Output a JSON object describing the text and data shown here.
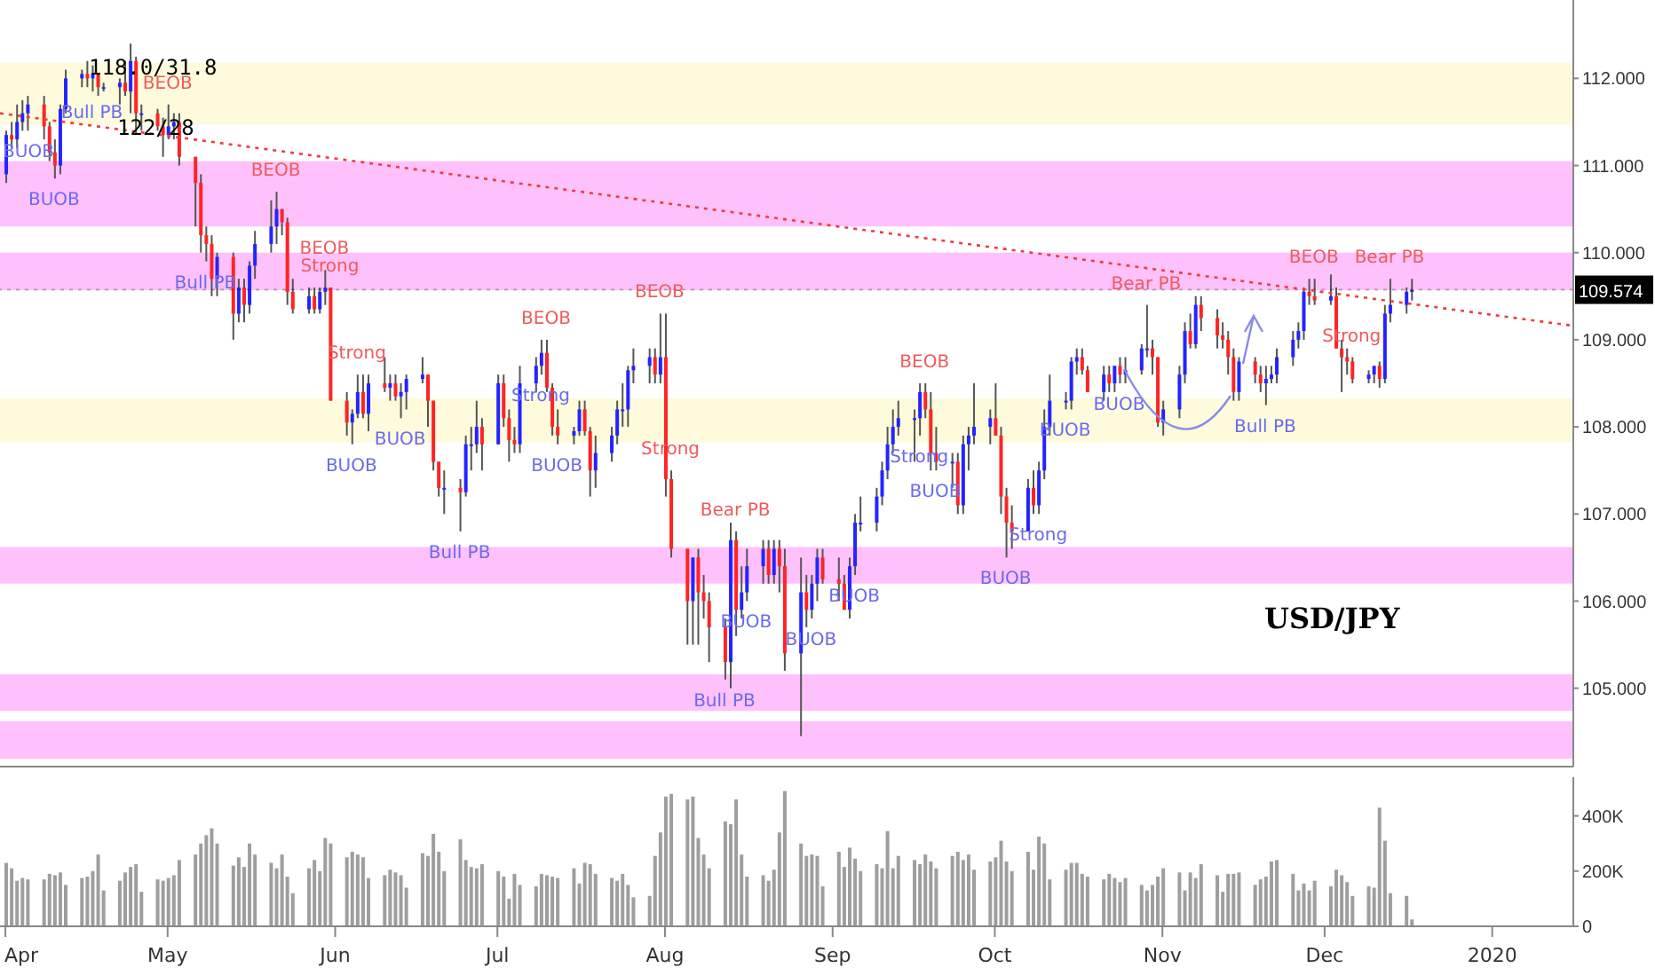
{
  "chart_data": [
    {
      "type": "candlestick",
      "tick_labels": "y",
      "x": [
        "2019-04-01",
        "2019-04-02",
        "2019-04-03",
        "2019-04-04",
        "2019-04-05",
        "2019-04-08",
        "2019-04-09",
        "2019-04-10",
        "2019-04-11",
        "2019-04-12",
        "2019-04-15",
        "2019-04-16",
        "2019-04-17",
        "2019-04-18",
        "2019-04-19",
        "2019-04-22",
        "2019-04-23",
        "2019-04-24",
        "2019-04-25",
        "2019-04-26",
        "2019-04-29",
        "2019-04-30",
        "2019-05-01",
        "2019-05-02",
        "2019-05-03",
        "2019-05-06",
        "2019-05-07",
        "2019-05-08",
        "2019-05-09",
        "2019-05-10",
        "2019-05-13",
        "2019-05-14",
        "2019-05-15",
        "2019-05-16",
        "2019-05-17",
        "2019-05-20",
        "2019-05-21",
        "2019-05-22",
        "2019-05-23",
        "2019-05-24",
        "2019-05-27",
        "2019-05-28",
        "2019-05-29",
        "2019-05-30",
        "2019-05-31",
        "2019-06-03",
        "2019-06-04",
        "2019-06-05",
        "2019-06-06",
        "2019-06-07",
        "2019-06-10",
        "2019-06-11",
        "2019-06-12",
        "2019-06-13",
        "2019-06-14",
        "2019-06-17",
        "2019-06-18",
        "2019-06-19",
        "2019-06-20",
        "2019-06-21",
        "2019-06-24",
        "2019-06-25",
        "2019-06-26",
        "2019-06-27",
        "2019-06-28",
        "2019-07-01",
        "2019-07-02",
        "2019-07-03",
        "2019-07-04",
        "2019-07-05",
        "2019-07-08",
        "2019-07-09",
        "2019-07-10",
        "2019-07-11",
        "2019-07-12",
        "2019-07-15",
        "2019-07-16",
        "2019-07-17",
        "2019-07-18",
        "2019-07-19",
        "2019-07-22",
        "2019-07-23",
        "2019-07-24",
        "2019-07-25",
        "2019-07-26",
        "2019-07-29",
        "2019-07-30",
        "2019-07-31",
        "2019-08-01",
        "2019-08-02",
        "2019-08-05",
        "2019-08-06",
        "2019-08-07",
        "2019-08-08",
        "2019-08-09",
        "2019-08-12",
        "2019-08-13",
        "2019-08-14",
        "2019-08-15",
        "2019-08-16",
        "2019-08-19",
        "2019-08-20",
        "2019-08-21",
        "2019-08-22",
        "2019-08-23",
        "2019-08-26",
        "2019-08-27",
        "2019-08-28",
        "2019-08-29",
        "2019-08-30",
        "2019-09-02",
        "2019-09-03",
        "2019-09-04",
        "2019-09-05",
        "2019-09-06",
        "2019-09-09",
        "2019-09-10",
        "2019-09-11",
        "2019-09-12",
        "2019-09-13",
        "2019-09-16",
        "2019-09-17",
        "2019-09-18",
        "2019-09-19",
        "2019-09-20",
        "2019-09-23",
        "2019-09-24",
        "2019-09-25",
        "2019-09-26",
        "2019-09-27",
        "2019-09-30",
        "2019-10-01",
        "2019-10-02",
        "2019-10-03",
        "2019-10-04",
        "2019-10-07",
        "2019-10-08",
        "2019-10-09",
        "2019-10-10",
        "2019-10-11",
        "2019-10-14",
        "2019-10-15",
        "2019-10-16",
        "2019-10-17",
        "2019-10-18",
        "2019-10-21",
        "2019-10-22",
        "2019-10-23",
        "2019-10-24",
        "2019-10-25",
        "2019-10-28",
        "2019-10-29",
        "2019-10-30",
        "2019-10-31",
        "2019-11-01",
        "2019-11-04",
        "2019-11-05",
        "2019-11-06",
        "2019-11-07",
        "2019-11-08",
        "2019-11-11",
        "2019-11-12",
        "2019-11-13",
        "2019-11-14",
        "2019-11-15",
        "2019-11-18",
        "2019-11-19",
        "2019-11-20",
        "2019-11-21",
        "2019-11-22",
        "2019-11-25",
        "2019-11-26",
        "2019-11-27",
        "2019-11-28",
        "2019-11-29",
        "2019-12-02",
        "2019-12-03",
        "2019-12-04",
        "2019-12-05",
        "2019-12-06",
        "2019-12-09",
        "2019-12-10",
        "2019-12-11",
        "2019-12-12",
        "2019-12-13",
        "2019-12-16",
        "2019-12-17"
      ],
      "ohlc": [
        [
          110.9,
          111.4,
          110.8,
          111.35
        ],
        [
          111.35,
          111.5,
          111.2,
          111.3
        ],
        [
          111.3,
          111.7,
          111.2,
          111.5
        ],
        [
          111.5,
          111.75,
          111.4,
          111.6
        ],
        [
          111.6,
          111.8,
          111.4,
          111.7
        ],
        [
          111.7,
          111.8,
          111.3,
          111.45
        ],
        [
          111.45,
          111.5,
          111.05,
          111.15
        ],
        [
          111.15,
          111.3,
          110.85,
          111.0
        ],
        [
          111.0,
          111.7,
          110.9,
          111.65
        ],
        [
          111.65,
          112.1,
          111.6,
          112.0
        ],
        [
          112.0,
          112.1,
          111.9,
          112.05
        ],
        [
          112.05,
          112.2,
          111.9,
          112.0
        ],
        [
          112.0,
          112.15,
          111.85,
          112.05
        ],
        [
          112.05,
          112.05,
          111.8,
          111.9
        ],
        [
          111.9,
          111.95,
          111.85,
          111.9
        ],
        [
          111.9,
          112.0,
          111.7,
          111.95
        ],
        [
          111.95,
          112.2,
          111.8,
          111.85
        ],
        [
          111.85,
          112.4,
          111.6,
          112.2
        ],
        [
          112.2,
          112.25,
          111.35,
          111.6
        ],
        [
          111.6,
          111.7,
          111.4,
          111.6
        ],
        [
          111.6,
          111.65,
          111.4,
          111.45
        ],
        [
          111.45,
          111.55,
          111.1,
          111.35
        ],
        [
          111.35,
          111.7,
          111.3,
          111.45
        ],
        [
          111.45,
          111.6,
          111.3,
          111.5
        ],
        [
          111.5,
          111.6,
          111.0,
          111.1
        ],
        [
          111.1,
          111.1,
          110.3,
          110.8
        ],
        [
          110.8,
          110.9,
          110.0,
          110.2
        ],
        [
          110.2,
          110.3,
          109.9,
          110.1
        ],
        [
          110.1,
          110.2,
          109.5,
          109.7
        ],
        [
          109.7,
          110.0,
          109.5,
          109.95
        ],
        [
          109.95,
          110.0,
          109.0,
          109.3
        ],
        [
          109.3,
          109.7,
          109.2,
          109.6
        ],
        [
          109.6,
          109.7,
          109.2,
          109.4
        ],
        [
          109.4,
          109.9,
          109.3,
          109.85
        ],
        [
          109.85,
          110.25,
          109.7,
          110.1
        ],
        [
          110.1,
          110.6,
          110.0,
          110.3
        ],
        [
          110.3,
          110.7,
          110.1,
          110.5
        ],
        [
          110.5,
          110.5,
          110.2,
          110.35
        ],
        [
          110.35,
          110.4,
          109.4,
          109.55
        ],
        [
          109.55,
          109.7,
          109.3,
          109.35
        ],
        [
          109.35,
          109.6,
          109.3,
          109.5
        ],
        [
          109.5,
          109.6,
          109.3,
          109.35
        ],
        [
          109.35,
          109.6,
          109.3,
          109.55
        ],
        [
          109.55,
          109.8,
          109.4,
          109.6
        ],
        [
          109.6,
          109.6,
          108.3,
          108.3
        ],
        [
          108.3,
          108.4,
          107.9,
          108.05
        ],
        [
          108.05,
          108.2,
          107.8,
          108.15
        ],
        [
          108.15,
          108.6,
          108.1,
          108.4
        ],
        [
          108.4,
          108.6,
          108.1,
          108.15
        ],
        [
          108.15,
          108.6,
          107.95,
          108.5
        ],
        [
          108.5,
          108.8,
          108.4,
          108.45
        ],
        [
          108.45,
          108.6,
          108.3,
          108.5
        ],
        [
          108.5,
          108.6,
          108.3,
          108.35
        ],
        [
          108.35,
          108.5,
          108.1,
          108.4
        ],
        [
          108.4,
          108.6,
          108.2,
          108.55
        ],
        [
          108.55,
          108.8,
          108.5,
          108.6
        ],
        [
          108.6,
          108.6,
          108.0,
          108.3
        ],
        [
          108.3,
          108.3,
          107.5,
          107.6
        ],
        [
          107.6,
          107.6,
          107.2,
          107.3
        ],
        [
          107.3,
          107.5,
          107.0,
          107.3
        ],
        [
          107.3,
          107.4,
          106.8,
          107.25
        ],
        [
          107.25,
          107.9,
          107.2,
          107.8
        ],
        [
          107.8,
          108.0,
          107.5,
          107.8
        ],
        [
          107.8,
          108.3,
          107.7,
          108.0
        ],
        [
          108.0,
          108.1,
          107.5,
          107.8
        ],
        [
          107.8,
          108.6,
          107.8,
          108.5
        ],
        [
          108.5,
          108.6,
          108.0,
          108.1
        ],
        [
          108.1,
          108.2,
          107.6,
          107.85
        ],
        [
          107.85,
          108.0,
          107.7,
          107.8
        ],
        [
          107.8,
          108.7,
          107.7,
          108.5
        ],
        [
          108.5,
          108.8,
          108.4,
          108.7
        ],
        [
          108.7,
          109.0,
          108.6,
          108.85
        ],
        [
          108.85,
          109.0,
          108.4,
          108.45
        ],
        [
          108.45,
          108.5,
          107.9,
          108.0
        ],
        [
          108.0,
          108.2,
          107.8,
          107.9
        ],
        [
          107.9,
          108.0,
          107.8,
          107.95
        ],
        [
          107.95,
          108.3,
          107.9,
          108.2
        ],
        [
          108.2,
          108.3,
          107.9,
          107.95
        ],
        [
          107.95,
          108.0,
          107.2,
          107.5
        ],
        [
          107.5,
          107.9,
          107.3,
          107.7
        ],
        [
          107.7,
          108.0,
          107.6,
          107.9
        ],
        [
          107.9,
          108.3,
          107.8,
          108.2
        ],
        [
          108.2,
          108.5,
          108.0,
          108.2
        ],
        [
          108.2,
          108.7,
          108.0,
          108.65
        ],
        [
          108.65,
          108.9,
          108.5,
          108.7
        ],
        [
          108.7,
          108.9,
          108.5,
          108.8
        ],
        [
          108.8,
          108.9,
          108.5,
          108.6
        ],
        [
          108.6,
          109.3,
          108.5,
          108.8
        ],
        [
          108.8,
          109.3,
          107.2,
          107.4
        ],
        [
          107.4,
          107.5,
          106.5,
          106.6
        ],
        [
          106.6,
          106.6,
          105.5,
          106.0
        ],
        [
          106.0,
          106.5,
          105.5,
          106.5
        ],
        [
          106.5,
          106.6,
          105.5,
          106.1
        ],
        [
          106.1,
          106.3,
          105.8,
          106.0
        ],
        [
          106.0,
          106.1,
          105.3,
          105.7
        ],
        [
          105.7,
          105.8,
          105.1,
          105.3
        ],
        [
          105.3,
          106.9,
          105.0,
          106.7
        ],
        [
          106.7,
          106.8,
          105.6,
          105.9
        ],
        [
          105.9,
          106.4,
          105.8,
          106.1
        ],
        [
          106.1,
          106.6,
          106.0,
          106.4
        ],
        [
          106.4,
          106.7,
          106.2,
          106.6
        ],
        [
          106.6,
          106.7,
          106.2,
          106.3
        ],
        [
          106.3,
          106.7,
          106.2,
          106.6
        ],
        [
          106.6,
          106.7,
          106.1,
          106.4
        ],
        [
          106.4,
          106.6,
          105.2,
          105.4
        ],
        [
          105.4,
          106.5,
          104.45,
          106.1
        ],
        [
          106.1,
          106.3,
          105.7,
          105.9
        ],
        [
          105.9,
          106.3,
          105.8,
          106.2
        ],
        [
          106.2,
          106.6,
          106.0,
          106.5
        ],
        [
          106.5,
          106.6,
          106.2,
          106.25
        ],
        [
          106.25,
          106.5,
          106.0,
          106.2
        ],
        [
          106.2,
          106.3,
          105.9,
          105.9
        ],
        [
          105.9,
          106.5,
          105.8,
          106.4
        ],
        [
          106.4,
          107.0,
          106.3,
          106.9
        ],
        [
          106.9,
          107.2,
          106.8,
          106.9
        ],
        [
          106.9,
          107.3,
          106.8,
          107.2
        ],
        [
          107.2,
          107.6,
          107.1,
          107.5
        ],
        [
          107.5,
          108.0,
          107.4,
          107.8
        ],
        [
          107.8,
          108.2,
          107.7,
          108.0
        ],
        [
          108.0,
          108.3,
          107.9,
          108.1
        ],
        [
          108.1,
          108.2,
          107.6,
          108.1
        ],
        [
          108.1,
          108.5,
          107.9,
          108.4
        ],
        [
          108.4,
          108.5,
          108.1,
          108.2
        ],
        [
          108.2,
          108.4,
          107.5,
          107.7
        ],
        [
          107.7,
          108.0,
          107.5,
          107.6
        ],
        [
          107.6,
          107.7,
          107.3,
          107.6
        ],
        [
          107.6,
          107.7,
          107.0,
          107.1
        ],
        [
          107.1,
          107.9,
          107.0,
          107.8
        ],
        [
          107.8,
          108.0,
          107.5,
          107.9
        ],
        [
          107.9,
          108.5,
          107.8,
          108.0
        ],
        [
          108.0,
          108.2,
          107.8,
          108.1
        ],
        [
          108.1,
          108.5,
          107.9,
          107.9
        ],
        [
          107.9,
          108.0,
          107.0,
          107.2
        ],
        [
          107.2,
          107.3,
          106.5,
          106.9
        ],
        [
          106.9,
          107.1,
          106.6,
          106.8
        ],
        [
          106.8,
          107.4,
          106.8,
          107.3
        ],
        [
          107.3,
          107.5,
          107.0,
          107.1
        ],
        [
          107.1,
          107.6,
          107.0,
          107.5
        ],
        [
          107.5,
          108.2,
          107.4,
          108.0
        ],
        [
          108.0,
          108.6,
          107.9,
          108.3
        ],
        [
          108.3,
          108.4,
          108.2,
          108.3
        ],
        [
          108.3,
          108.8,
          108.2,
          108.75
        ],
        [
          108.75,
          108.9,
          108.6,
          108.8
        ],
        [
          108.8,
          108.9,
          108.6,
          108.65
        ],
        [
          108.65,
          108.7,
          108.4,
          108.4
        ],
        [
          108.4,
          108.7,
          108.3,
          108.6
        ],
        [
          108.6,
          108.7,
          108.4,
          108.5
        ],
        [
          108.5,
          108.7,
          108.4,
          108.7
        ],
        [
          108.7,
          108.8,
          108.5,
          108.6
        ],
        [
          108.6,
          108.8,
          108.5,
          108.65
        ],
        [
          108.65,
          108.95,
          108.6,
          108.9
        ],
        [
          108.9,
          109.4,
          108.8,
          108.9
        ],
        [
          108.9,
          109.0,
          108.6,
          108.8
        ],
        [
          108.8,
          108.8,
          108.0,
          108.05
        ],
        [
          108.05,
          108.3,
          107.9,
          108.2
        ],
        [
          108.2,
          108.7,
          108.1,
          108.6
        ],
        [
          108.6,
          109.2,
          108.5,
          109.1
        ],
        [
          109.1,
          109.3,
          108.9,
          108.95
        ],
        [
          108.95,
          109.5,
          108.9,
          109.4
        ],
        [
          109.4,
          109.5,
          109.1,
          109.25
        ],
        [
          109.25,
          109.35,
          108.9,
          109.05
        ],
        [
          109.05,
          109.2,
          108.9,
          109.0
        ],
        [
          109.0,
          109.1,
          108.6,
          108.8
        ],
        [
          108.8,
          108.9,
          108.3,
          108.4
        ],
        [
          108.4,
          108.8,
          108.3,
          108.75
        ],
        [
          108.75,
          108.8,
          108.5,
          108.6
        ],
        [
          108.6,
          108.7,
          108.4,
          108.5
        ],
        [
          108.5,
          108.7,
          108.25,
          108.55
        ],
        [
          108.55,
          108.7,
          108.5,
          108.6
        ],
        [
          108.6,
          108.9,
          108.5,
          108.8
        ],
        [
          108.8,
          109.1,
          108.7,
          109.0
        ],
        [
          109.0,
          109.2,
          108.9,
          109.1
        ],
        [
          109.1,
          109.6,
          109.0,
          109.55
        ],
        [
          109.55,
          109.7,
          109.4,
          109.5
        ],
        [
          109.5,
          109.7,
          109.4,
          109.45
        ],
        [
          109.45,
          109.75,
          109.4,
          109.5
        ],
        [
          109.5,
          109.6,
          108.9,
          108.9
        ],
        [
          108.9,
          109.0,
          108.4,
          108.8
        ],
        [
          108.8,
          108.9,
          108.6,
          108.75
        ],
        [
          108.75,
          108.8,
          108.5,
          108.55
        ],
        [
          108.55,
          108.65,
          108.5,
          108.6
        ],
        [
          108.6,
          108.7,
          108.5,
          108.7
        ],
        [
          108.7,
          108.75,
          108.45,
          108.55
        ],
        [
          108.55,
          109.4,
          108.5,
          109.3
        ],
        [
          109.3,
          109.7,
          109.2,
          109.4
        ],
        [
          109.4,
          109.6,
          109.3,
          109.55
        ],
        [
          109.55,
          109.7,
          109.45,
          109.57
        ]
      ],
      "series": [
        {
          "type": "line",
          "x": [
            "2019-03-31",
            "2020-01-16"
          ],
          "values": [
            111.6,
            109.16
          ],
          "color": "#f23b3b",
          "line_style": "dotted"
        }
      ],
      "xlim": [
        "2019-03-31",
        "2020-01-16"
      ],
      "ylim": [
        104.1,
        112.9
      ],
      "yticks": [
        {
          "value": 105,
          "label": "105.000"
        },
        {
          "value": 106,
          "label": "106.000"
        },
        {
          "value": 107,
          "label": "107.000"
        },
        {
          "value": 108,
          "label": "108.000"
        },
        {
          "value": 109,
          "label": "109.000"
        },
        {
          "value": 110,
          "label": "110.000"
        },
        {
          "value": 111,
          "label": "111.000"
        },
        {
          "value": 112,
          "label": "112.000"
        }
      ],
      "bands": [
        {
          "axis": "y",
          "from": 111.47,
          "to": 112.18,
          "color": "#fdfbdc"
        },
        {
          "axis": "y",
          "from": 110.3,
          "to": 111.05,
          "color": "#ffc1fb"
        },
        {
          "axis": "y",
          "from": 109.57,
          "to": 110.0,
          "color": "#ffc1fb"
        },
        {
          "axis": "y",
          "from": 107.82,
          "to": 108.33,
          "color": "#fdfbdc"
        },
        {
          "axis": "y",
          "from": 106.2,
          "to": 106.62,
          "color": "#ffc1fb"
        },
        {
          "axis": "y",
          "from": 104.74,
          "to": 105.16,
          "color": "#ffc1fb"
        },
        {
          "axis": "y",
          "from": 104.19,
          "to": 104.62,
          "color": "#ffc1fb"
        }
      ],
      "ref_lines": [
        {
          "axis": "y",
          "value": 109.574,
          "label": "109.574"
        }
      ],
      "annotations": [
        "USD/JPY",
        "118.0/31.8",
        "122/28",
        {
          "text": "BUOB",
          "x": "2019-04-04",
          "y": 111.4
        },
        {
          "text": "BUOB",
          "x": "2019-04-10",
          "y": 110.85
        },
        {
          "text": "Bull PB",
          "x": "2019-04-17",
          "y": 111.85
        },
        {
          "text": "BEOB",
          "x": "2019-05-01",
          "y": 111.7
        },
        {
          "text": "Bull PB",
          "x": "2019-05-08",
          "y": 109.9
        },
        {
          "text": "BEOB",
          "x": "2019-05-21",
          "y": 110.7
        },
        {
          "text": "BEOB",
          "x": "2019-05-30",
          "y": 109.8
        },
        {
          "text": "Strong",
          "x": "2019-06-05",
          "y": 108.6
        },
        {
          "text": "Strong",
          "x": "2019-05-31",
          "y": 109.6
        },
        {
          "text": "BUOB",
          "x": "2019-06-04",
          "y": 107.8
        },
        {
          "text": "BUOB",
          "x": "2019-06-13",
          "y": 108.1
        },
        {
          "text": "Bull PB",
          "x": "2019-06-24",
          "y": 106.8
        },
        {
          "text": "Strong",
          "x": "2019-07-09",
          "y": 108.6
        },
        {
          "text": "BEOB",
          "x": "2019-07-10",
          "y": 109.0
        },
        {
          "text": "BUOB",
          "x": "2019-07-12",
          "y": 107.8
        },
        {
          "text": "BEOB",
          "x": "2019-07-31",
          "y": 109.3
        },
        {
          "text": "Strong",
          "x": "2019-08-02",
          "y": 107.5
        },
        {
          "text": "Bear PB",
          "x": "2019-08-14",
          "y": 106.8
        },
        {
          "text": "Bull PB",
          "x": "2019-08-12",
          "y": 105.1
        },
        {
          "text": "BUOB",
          "x": "2019-08-16",
          "y": 106.0
        },
        {
          "text": "BUOB",
          "x": "2019-08-28",
          "y": 105.8
        },
        {
          "text": "BUOB",
          "x": "2019-09-05",
          "y": 106.3
        },
        {
          "text": "Strong",
          "x": "2019-09-17",
          "y": 107.9
        },
        {
          "text": "BEOB",
          "x": "2019-09-18",
          "y": 108.5
        },
        {
          "text": "BUOB",
          "x": "2019-09-20",
          "y": 107.5
        },
        {
          "text": "Strong",
          "x": "2019-10-09",
          "y": 107.0
        },
        {
          "text": "BUOB",
          "x": "2019-10-03",
          "y": 106.5
        },
        {
          "text": "BUOB",
          "x": "2019-10-14",
          "y": 108.2
        },
        {
          "text": "BUOB",
          "x": "2019-10-24",
          "y": 108.5
        },
        {
          "text": "Bear PB",
          "x": "2019-10-29",
          "y": 109.4
        },
        {
          "text": "Bull PB",
          "x": "2019-11-20",
          "y": 108.25
        },
        {
          "text": "BEOB",
          "x": "2019-11-29",
          "y": 109.7
        },
        {
          "text": "Strong",
          "x": "2019-12-06",
          "y": 108.8
        },
        {
          "text": "Bear PB",
          "x": "2019-12-13",
          "y": 109.7
        }
      ]
    },
    {
      "type": "bar",
      "color": "#9e9e9e",
      "x": [
        "2019-04-01",
        "2019-04-02",
        "2019-04-03",
        "2019-04-04",
        "2019-04-05",
        "2019-04-08",
        "2019-04-09",
        "2019-04-10",
        "2019-04-11",
        "2019-04-12",
        "2019-04-15",
        "2019-04-16",
        "2019-04-17",
        "2019-04-18",
        "2019-04-19",
        "2019-04-22",
        "2019-04-23",
        "2019-04-24",
        "2019-04-25",
        "2019-04-26",
        "2019-04-29",
        "2019-04-30",
        "2019-05-01",
        "2019-05-02",
        "2019-05-03",
        "2019-05-06",
        "2019-05-07",
        "2019-05-08",
        "2019-05-09",
        "2019-05-10",
        "2019-05-13",
        "2019-05-14",
        "2019-05-15",
        "2019-05-16",
        "2019-05-17",
        "2019-05-20",
        "2019-05-21",
        "2019-05-22",
        "2019-05-23",
        "2019-05-24",
        "2019-05-27",
        "2019-05-28",
        "2019-05-29",
        "2019-05-30",
        "2019-05-31",
        "2019-06-03",
        "2019-06-04",
        "2019-06-05",
        "2019-06-06",
        "2019-06-07",
        "2019-06-10",
        "2019-06-11",
        "2019-06-12",
        "2019-06-13",
        "2019-06-14",
        "2019-06-17",
        "2019-06-18",
        "2019-06-19",
        "2019-06-20",
        "2019-06-21",
        "2019-06-24",
        "2019-06-25",
        "2019-06-26",
        "2019-06-27",
        "2019-06-28",
        "2019-07-01",
        "2019-07-02",
        "2019-07-03",
        "2019-07-04",
        "2019-07-05",
        "2019-07-08",
        "2019-07-09",
        "2019-07-10",
        "2019-07-11",
        "2019-07-12",
        "2019-07-15",
        "2019-07-16",
        "2019-07-17",
        "2019-07-18",
        "2019-07-19",
        "2019-07-22",
        "2019-07-23",
        "2019-07-24",
        "2019-07-25",
        "2019-07-26",
        "2019-07-29",
        "2019-07-30",
        "2019-07-31",
        "2019-08-01",
        "2019-08-02",
        "2019-08-05",
        "2019-08-06",
        "2019-08-07",
        "2019-08-08",
        "2019-08-09",
        "2019-08-12",
        "2019-08-13",
        "2019-08-14",
        "2019-08-15",
        "2019-08-16",
        "2019-08-19",
        "2019-08-20",
        "2019-08-21",
        "2019-08-22",
        "2019-08-23",
        "2019-08-26",
        "2019-08-27",
        "2019-08-28",
        "2019-08-29",
        "2019-08-30",
        "2019-09-02",
        "2019-09-03",
        "2019-09-04",
        "2019-09-05",
        "2019-09-06",
        "2019-09-09",
        "2019-09-10",
        "2019-09-11",
        "2019-09-12",
        "2019-09-13",
        "2019-09-16",
        "2019-09-17",
        "2019-09-18",
        "2019-09-19",
        "2019-09-20",
        "2019-09-23",
        "2019-09-24",
        "2019-09-25",
        "2019-09-26",
        "2019-09-27",
        "2019-09-30",
        "2019-10-01",
        "2019-10-02",
        "2019-10-03",
        "2019-10-04",
        "2019-10-07",
        "2019-10-08",
        "2019-10-09",
        "2019-10-10",
        "2019-10-11",
        "2019-10-14",
        "2019-10-15",
        "2019-10-16",
        "2019-10-17",
        "2019-10-18",
        "2019-10-21",
        "2019-10-22",
        "2019-10-23",
        "2019-10-24",
        "2019-10-25",
        "2019-10-28",
        "2019-10-29",
        "2019-10-30",
        "2019-10-31",
        "2019-11-01",
        "2019-11-04",
        "2019-11-05",
        "2019-11-06",
        "2019-11-07",
        "2019-11-08",
        "2019-11-11",
        "2019-11-12",
        "2019-11-13",
        "2019-11-14",
        "2019-11-15",
        "2019-11-18",
        "2019-11-19",
        "2019-11-20",
        "2019-11-21",
        "2019-11-22",
        "2019-11-25",
        "2019-11-26",
        "2019-11-27",
        "2019-11-28",
        "2019-11-29",
        "2019-12-02",
        "2019-12-03",
        "2019-12-04",
        "2019-12-05",
        "2019-12-06",
        "2019-12-09",
        "2019-12-10",
        "2019-12-11",
        "2019-12-12",
        "2019-12-13",
        "2019-12-16",
        "2019-12-17"
      ],
      "values": [
        230,
        210,
        165,
        175,
        170,
        170,
        190,
        185,
        195,
        150,
        175,
        180,
        200,
        260,
        130,
        165,
        195,
        215,
        225,
        125,
        170,
        165,
        175,
        185,
        240,
        260,
        300,
        330,
        355,
        300,
        220,
        250,
        215,
        300,
        260,
        230,
        210,
        260,
        180,
        120,
        210,
        240,
        200,
        320,
        300,
        250,
        270,
        260,
        250,
        175,
        185,
        205,
        195,
        185,
        140,
        265,
        255,
        335,
        270,
        200,
        315,
        240,
        215,
        210,
        225,
        200,
        180,
        100,
        190,
        150,
        145,
        190,
        185,
        180,
        175,
        210,
        155,
        230,
        225,
        190,
        175,
        165,
        190,
        150,
        105,
        110,
        255,
        340,
        470,
        480,
        460,
        470,
        320,
        260,
        210,
        380,
        370,
        460,
        260,
        180,
        185,
        165,
        205,
        340,
        490,
        300,
        255,
        260,
        255,
        145,
        270,
        215,
        285,
        245,
        200,
        225,
        210,
        345,
        210,
        255,
        240,
        225,
        260,
        235,
        210,
        255,
        270,
        240,
        260,
        205,
        235,
        250,
        310,
        235,
        200,
        270,
        205,
        325,
        300,
        170,
        205,
        230,
        230,
        190,
        180,
        170,
        190,
        175,
        160,
        175,
        150,
        130,
        150,
        180,
        210,
        195,
        130,
        195,
        175,
        225,
        185,
        125,
        190,
        190,
        195,
        150,
        170,
        180,
        235,
        240,
        190,
        130,
        155,
        130,
        165,
        145,
        205,
        185,
        160,
        110,
        145,
        140,
        430,
        310,
        120,
        110,
        25
      ],
      "xlim": [
        "2019-03-31",
        "2020-01-16"
      ],
      "xticks": [
        {
          "value": "2019-04-01",
          "label": "Apr"
        },
        {
          "value": "2019-05-01",
          "label": "May"
        },
        {
          "value": "2019-06-01",
          "label": "Jun"
        },
        {
          "value": "2019-07-01",
          "label": "Jul"
        },
        {
          "value": "2019-08-01",
          "label": "Aug"
        },
        {
          "value": "2019-09-01",
          "label": "Sep"
        },
        {
          "value": "2019-10-01",
          "label": "Oct"
        },
        {
          "value": "2019-11-01",
          "label": "Nov"
        },
        {
          "value": "2019-12-01",
          "label": "Dec"
        },
        {
          "value": "2020-01-01",
          "label": "2020"
        }
      ],
      "ylim": [
        0,
        540
      ],
      "yticks": [
        0,
        {
          "value": 200,
          "label": "200K"
        },
        {
          "value": 400,
          "label": "400K"
        }
      ]
    }
  ]
}
